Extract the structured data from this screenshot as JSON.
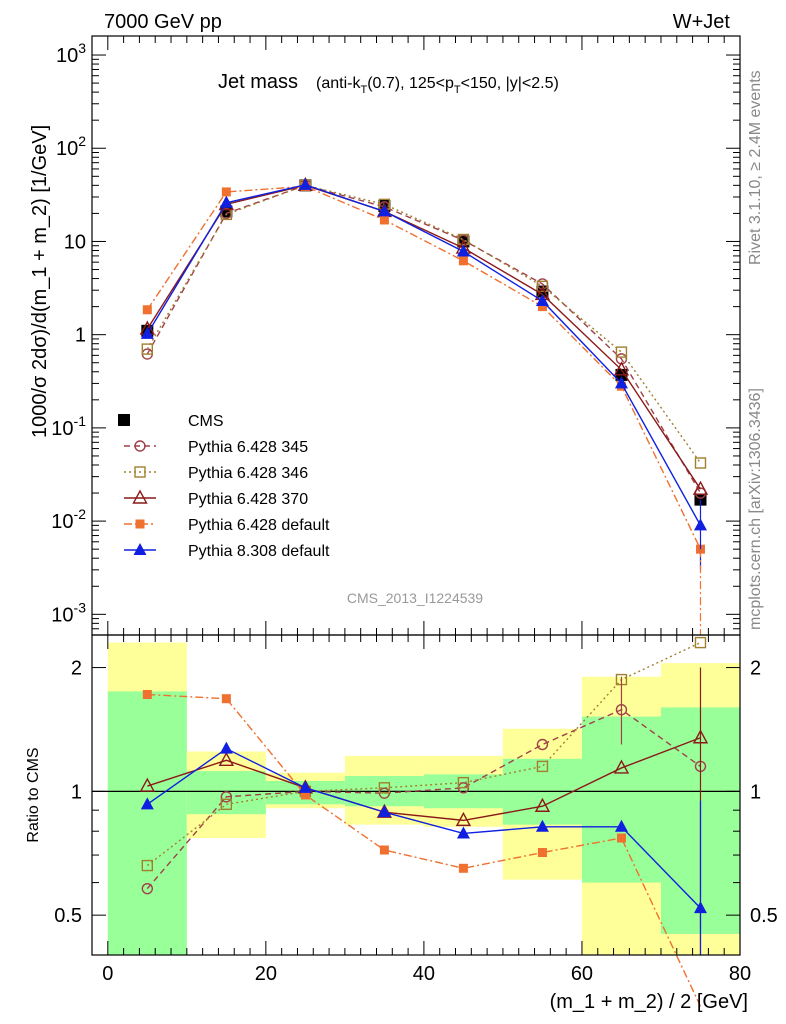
{
  "header": {
    "energy": "7000 GeV pp",
    "process": "W+Jet",
    "right_side_top": "Rivet 3.1.10, ≥ 2.4M events",
    "right_side_bottom": "mcplots.cern.ch [arXiv:1306.3436]"
  },
  "chart_data": [
    {
      "type": "line",
      "title": "Jet mass",
      "subtitle": "(anti-kT(0.7), 125<pT<150, |y|<2.5)",
      "ylabel": "1000/σ 2dσ)/d(m_1 + m_2) [1/GeV]",
      "xlabel": "",
      "analysis_label": "CMS_2013_I1224539",
      "xlim": [
        -2,
        80
      ],
      "ylim": [
        0.0006,
        1600
      ],
      "yscale": "log",
      "y_tick_labels": [
        "10^-3",
        "10^-2",
        "10^-1",
        "1",
        "10",
        "10^2",
        "10^3"
      ],
      "legend_position": "center-left",
      "x": [
        5,
        15,
        25,
        35,
        45,
        55,
        65,
        75
      ],
      "series": [
        {
          "name": "CMS",
          "style": "data",
          "color": "#000000",
          "marker": "filled-square",
          "values": [
            1.1,
            21,
            40,
            24,
            10,
            2.9,
            0.37,
            0.017
          ]
        },
        {
          "name": "Pythia 6.428 345",
          "style": "dashed",
          "color": "#a0404a",
          "marker": "open-circle",
          "values": [
            0.62,
            20,
            40,
            23.5,
            10.3,
            3.5,
            0.55,
            0.02
          ]
        },
        {
          "name": "Pythia 6.428 346",
          "style": "dotted",
          "color": "#a08030",
          "marker": "open-square",
          "values": [
            0.7,
            19.5,
            40,
            25,
            10.5,
            3.3,
            0.65,
            0.042
          ]
        },
        {
          "name": "Pythia 6.428 370",
          "style": "solid",
          "color": "#8b1a1a",
          "marker": "open-triangle",
          "values": [
            1.15,
            25,
            40,
            21,
            8.5,
            2.7,
            0.42,
            0.022
          ]
        },
        {
          "name": "Pythia 6.428 default",
          "style": "dashdot",
          "color": "#f07030",
          "marker": "small-square",
          "values": [
            1.85,
            34,
            39,
            17,
            6.2,
            2.0,
            0.28,
            0.005
          ]
        },
        {
          "name": "Pythia 8.308 default",
          "style": "solid",
          "color": "#1020e0",
          "marker": "filled-triangle",
          "values": [
            1.02,
            26,
            40.5,
            21,
            7.8,
            2.3,
            0.3,
            0.009
          ]
        }
      ]
    },
    {
      "type": "line",
      "title": "",
      "ylabel": "Ratio to CMS",
      "xlabel": "(m_1 + m_2) / 2 [GeV]",
      "xlim": [
        -2,
        80
      ],
      "ylim": [
        0.4,
        2.4
      ],
      "yscale": "log",
      "y_tick_labels": [
        "0.5",
        "1",
        "2"
      ],
      "x_tick_labels": [
        "0",
        "20",
        "40",
        "60",
        "80"
      ],
      "x": [
        5,
        15,
        25,
        35,
        45,
        55,
        65,
        75
      ],
      "bands": {
        "x_edges": [
          0,
          10,
          20,
          30,
          40,
          50,
          60,
          70,
          80
        ],
        "green_low": [
          0.4,
          0.88,
          0.93,
          0.92,
          0.91,
          0.83,
          0.6,
          0.45
        ],
        "green_high": [
          1.75,
          1.12,
          1.06,
          1.09,
          1.1,
          1.2,
          1.52,
          1.6
        ],
        "yellow_low": [
          0.4,
          0.77,
          0.91,
          0.83,
          0.82,
          0.61,
          0.4,
          0.4
        ],
        "yellow_high": [
          2.3,
          1.25,
          1.11,
          1.22,
          1.22,
          1.42,
          1.9,
          2.05
        ],
        "green_color": "#99ff99",
        "yellow_color": "#ffff99"
      },
      "series": [
        {
          "name": "Pythia 6.428 345",
          "values": [
            0.58,
            0.97,
            1.0,
            0.99,
            1.02,
            1.3,
            1.58,
            1.15
          ]
        },
        {
          "name": "Pythia 6.428 346",
          "values": [
            0.66,
            0.93,
            1.0,
            1.02,
            1.05,
            1.15,
            1.87,
            2.3
          ]
        },
        {
          "name": "Pythia 6.428 370",
          "values": [
            1.03,
            1.19,
            1.02,
            0.89,
            0.85,
            0.92,
            1.14,
            1.35
          ]
        },
        {
          "name": "Pythia 6.428 default",
          "values": [
            1.72,
            1.68,
            0.98,
            0.72,
            0.65,
            0.71,
            0.77,
            0.3
          ]
        },
        {
          "name": "Pythia 8.308 default",
          "values": [
            0.93,
            1.27,
            1.02,
            0.89,
            0.79,
            0.82,
            0.82,
            0.52
          ]
        }
      ]
    }
  ]
}
